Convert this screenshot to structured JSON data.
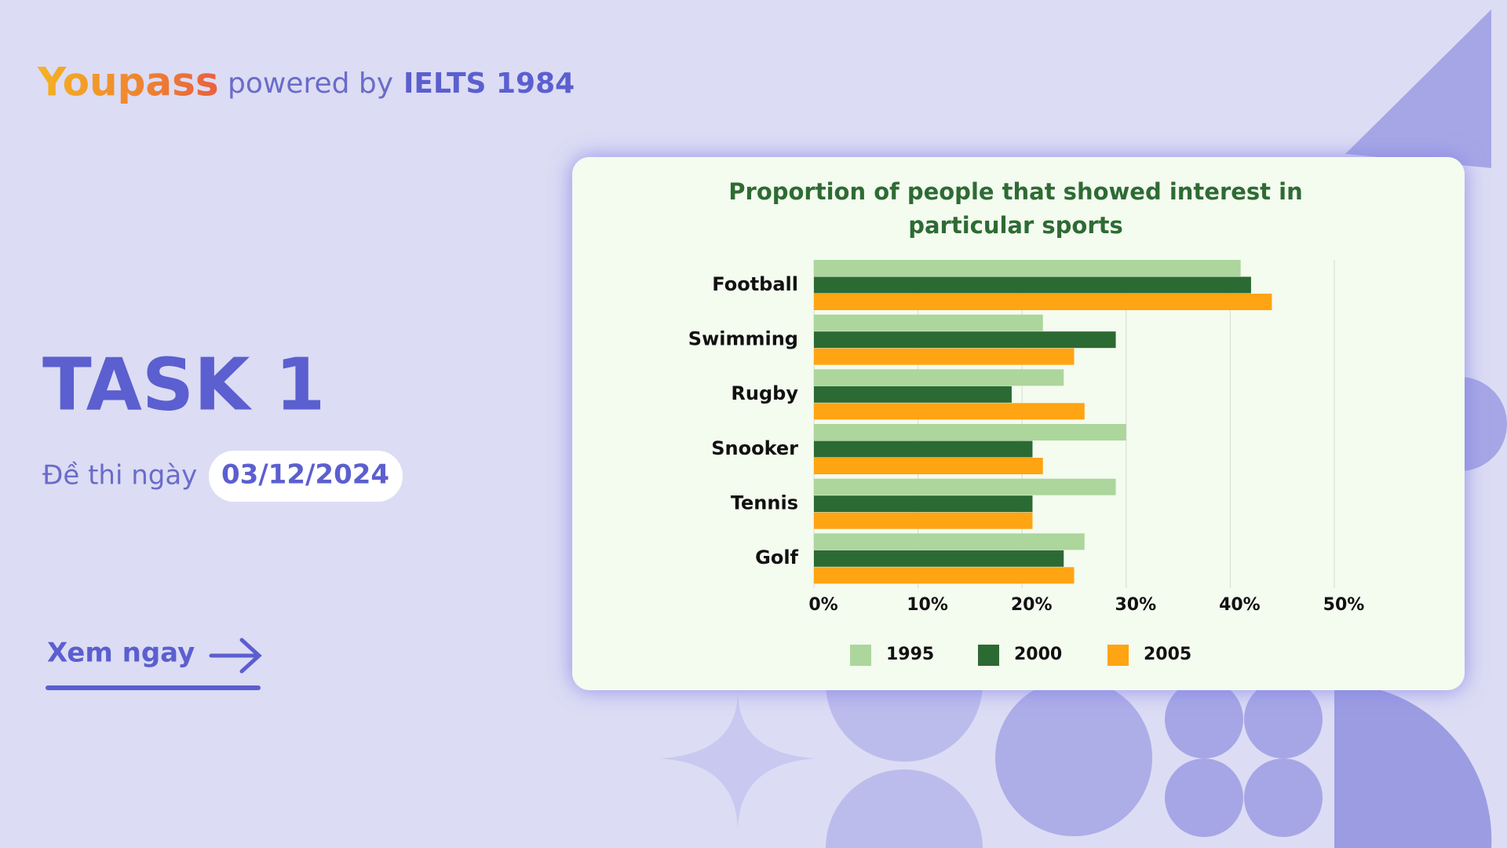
{
  "brand": "Youpass",
  "powered_by": "powered by",
  "partner": "IELTS 1984",
  "heading": "TASK 1",
  "date_label": "Đề thi ngày",
  "date": "03/12/2024",
  "cta": "Xem ngay",
  "chart_data": {
    "type": "bar",
    "orientation": "horizontal",
    "title": [
      "Proportion of people that showed interest in",
      "particular sports"
    ],
    "categories": [
      "Football",
      "Swimming",
      "Rugby",
      "Snooker",
      "Tennis",
      "Golf"
    ],
    "series": [
      {
        "name": "1995",
        "color": "#acd69c",
        "values": [
          41,
          22,
          24,
          30,
          29,
          26
        ]
      },
      {
        "name": "2000",
        "color": "#2c6a33",
        "values": [
          42,
          29,
          19,
          21,
          21,
          24
        ]
      },
      {
        "name": "2005",
        "color": "#ffa412",
        "values": [
          44,
          25,
          26,
          22,
          21,
          25
        ]
      }
    ],
    "xlim": [
      0,
      50
    ],
    "xticks": [
      {
        "value": 0,
        "label": "0%"
      },
      {
        "value": 10,
        "label": "10%"
      },
      {
        "value": 20,
        "label": "20%"
      },
      {
        "value": 30,
        "label": "30%"
      },
      {
        "value": 40,
        "label": "40%"
      },
      {
        "value": 50,
        "label": "50%"
      }
    ],
    "grid": true,
    "legend": "bottom"
  }
}
